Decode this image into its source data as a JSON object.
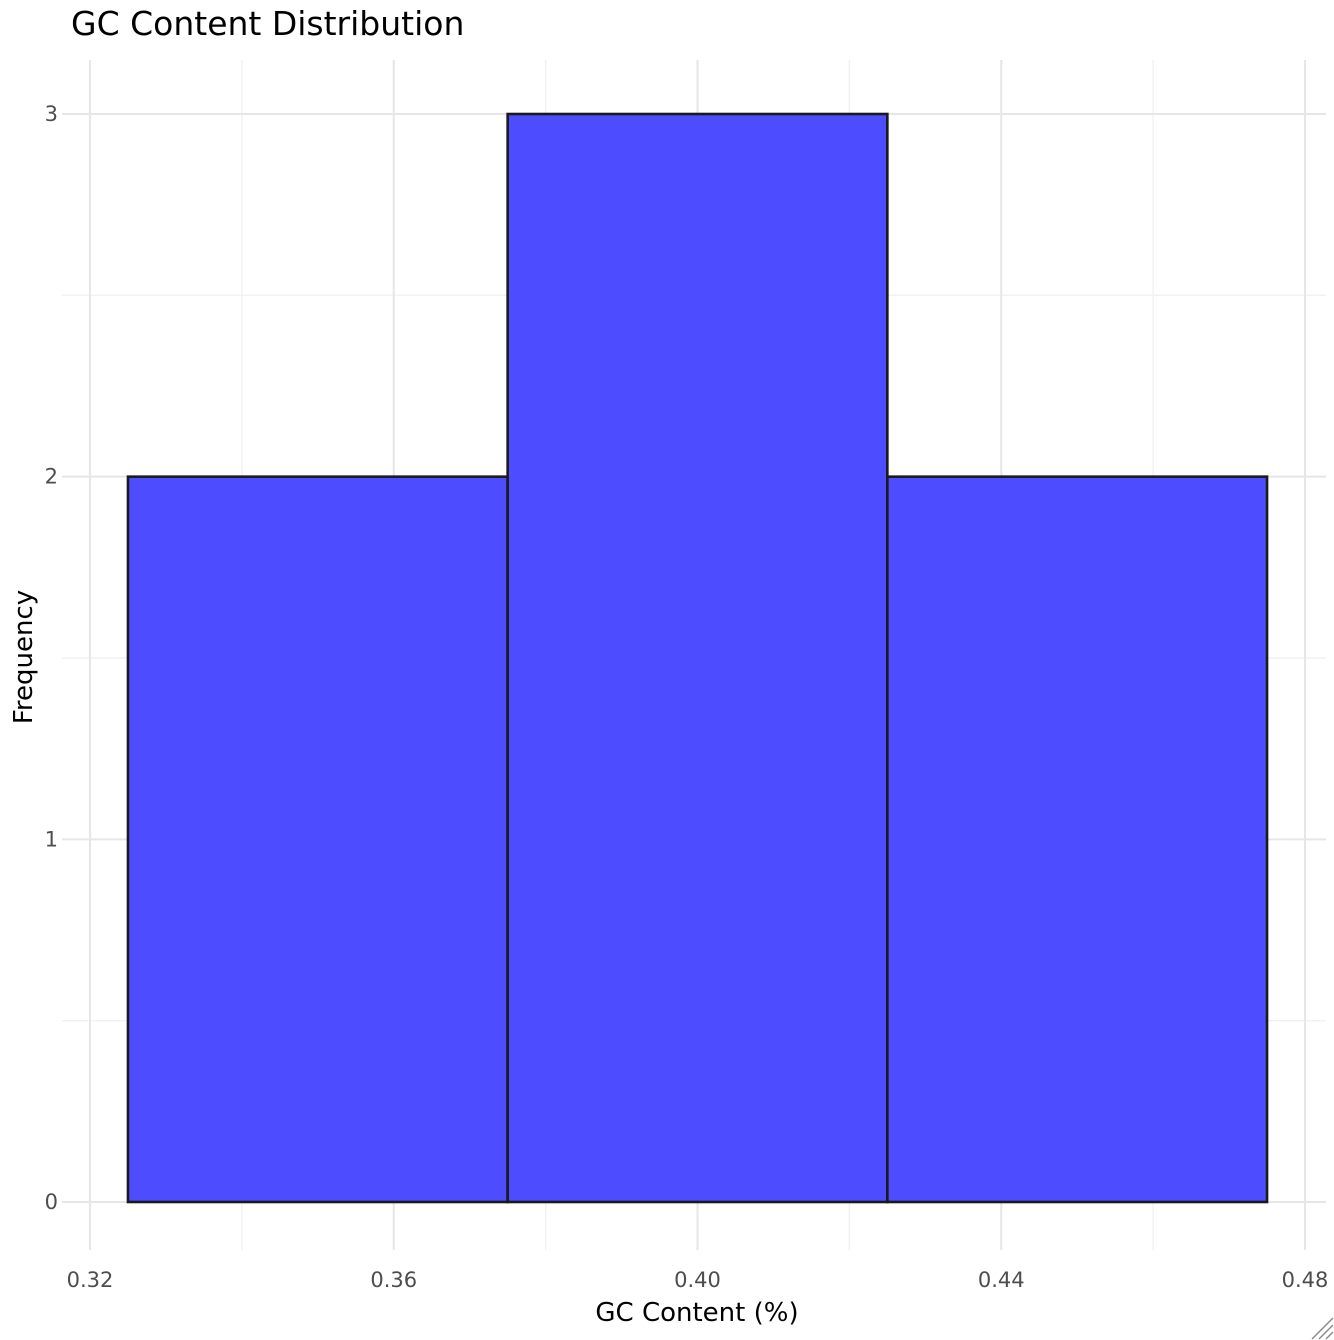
{
  "chart_data": {
    "type": "bar",
    "title": "GC Content Distribution",
    "xlabel": "GC Content (%)",
    "ylabel": "Frequency",
    "bins": [
      {
        "x_start": 0.325,
        "x_end": 0.375,
        "count": 2
      },
      {
        "x_start": 0.375,
        "x_end": 0.425,
        "count": 3
      },
      {
        "x_start": 0.425,
        "x_end": 0.475,
        "count": 2
      }
    ],
    "xlim": [
      0.32,
      0.48
    ],
    "ylim": [
      0,
      3
    ],
    "x_ticks": [
      "0.32",
      "0.36",
      "0.40",
      "0.44",
      "0.48"
    ],
    "y_ticks": [
      "0",
      "1",
      "2",
      "3"
    ],
    "bar_color": "#4d4dff",
    "bar_border_color": "#1a1a1a",
    "grid": true,
    "legend": false
  }
}
